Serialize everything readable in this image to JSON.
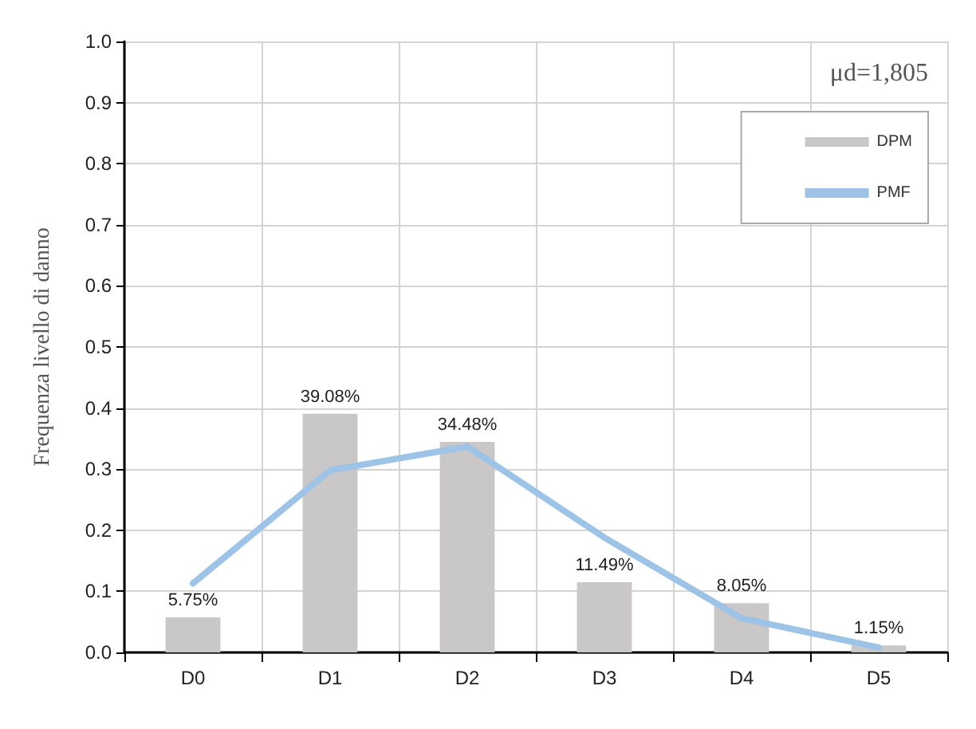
{
  "chart_data": {
    "type": "bar",
    "ylabel": "Frequenza livello di danno",
    "annotations": [
      "μd=1,805"
    ],
    "categories": [
      "D0",
      "D1",
      "D2",
      "D3",
      "D4",
      "D5"
    ],
    "series": [
      {
        "name": "DPM",
        "color": "#c9c7c7",
        "values": [
          0.0575,
          0.3908,
          0.3448,
          0.1149,
          0.0805,
          0.0115
        ],
        "value_labels": [
          "5.75%",
          "39.08%",
          "34.48%",
          "11.49%",
          "8.05%",
          "1.15%"
        ]
      },
      {
        "name": "PMF",
        "type": "line",
        "color": "#9dc3e6",
        "values": [
          0.113,
          0.298,
          0.337,
          0.188,
          0.056,
          0.008
        ],
        "marker": "none"
      }
    ],
    "ylim": [
      0,
      1
    ],
    "yticks": [
      {
        "value": 0,
        "label": "0.0"
      },
      {
        "value": 0.1,
        "label": "0.1"
      },
      {
        "value": 0.2,
        "label": "0.2"
      },
      {
        "value": 0.3,
        "label": "0.3"
      },
      {
        "value": 0.4,
        "label": "0.4"
      },
      {
        "value": 0.5,
        "label": "0.5"
      },
      {
        "value": 0.6,
        "label": "0.6"
      },
      {
        "value": 0.7,
        "label": "0.7"
      },
      {
        "value": 0.8,
        "label": "0.8"
      },
      {
        "value": 0.9,
        "label": "0.9"
      },
      {
        "value": 1,
        "label": "1.0"
      }
    ],
    "grid": true,
    "legend": "top right"
  }
}
